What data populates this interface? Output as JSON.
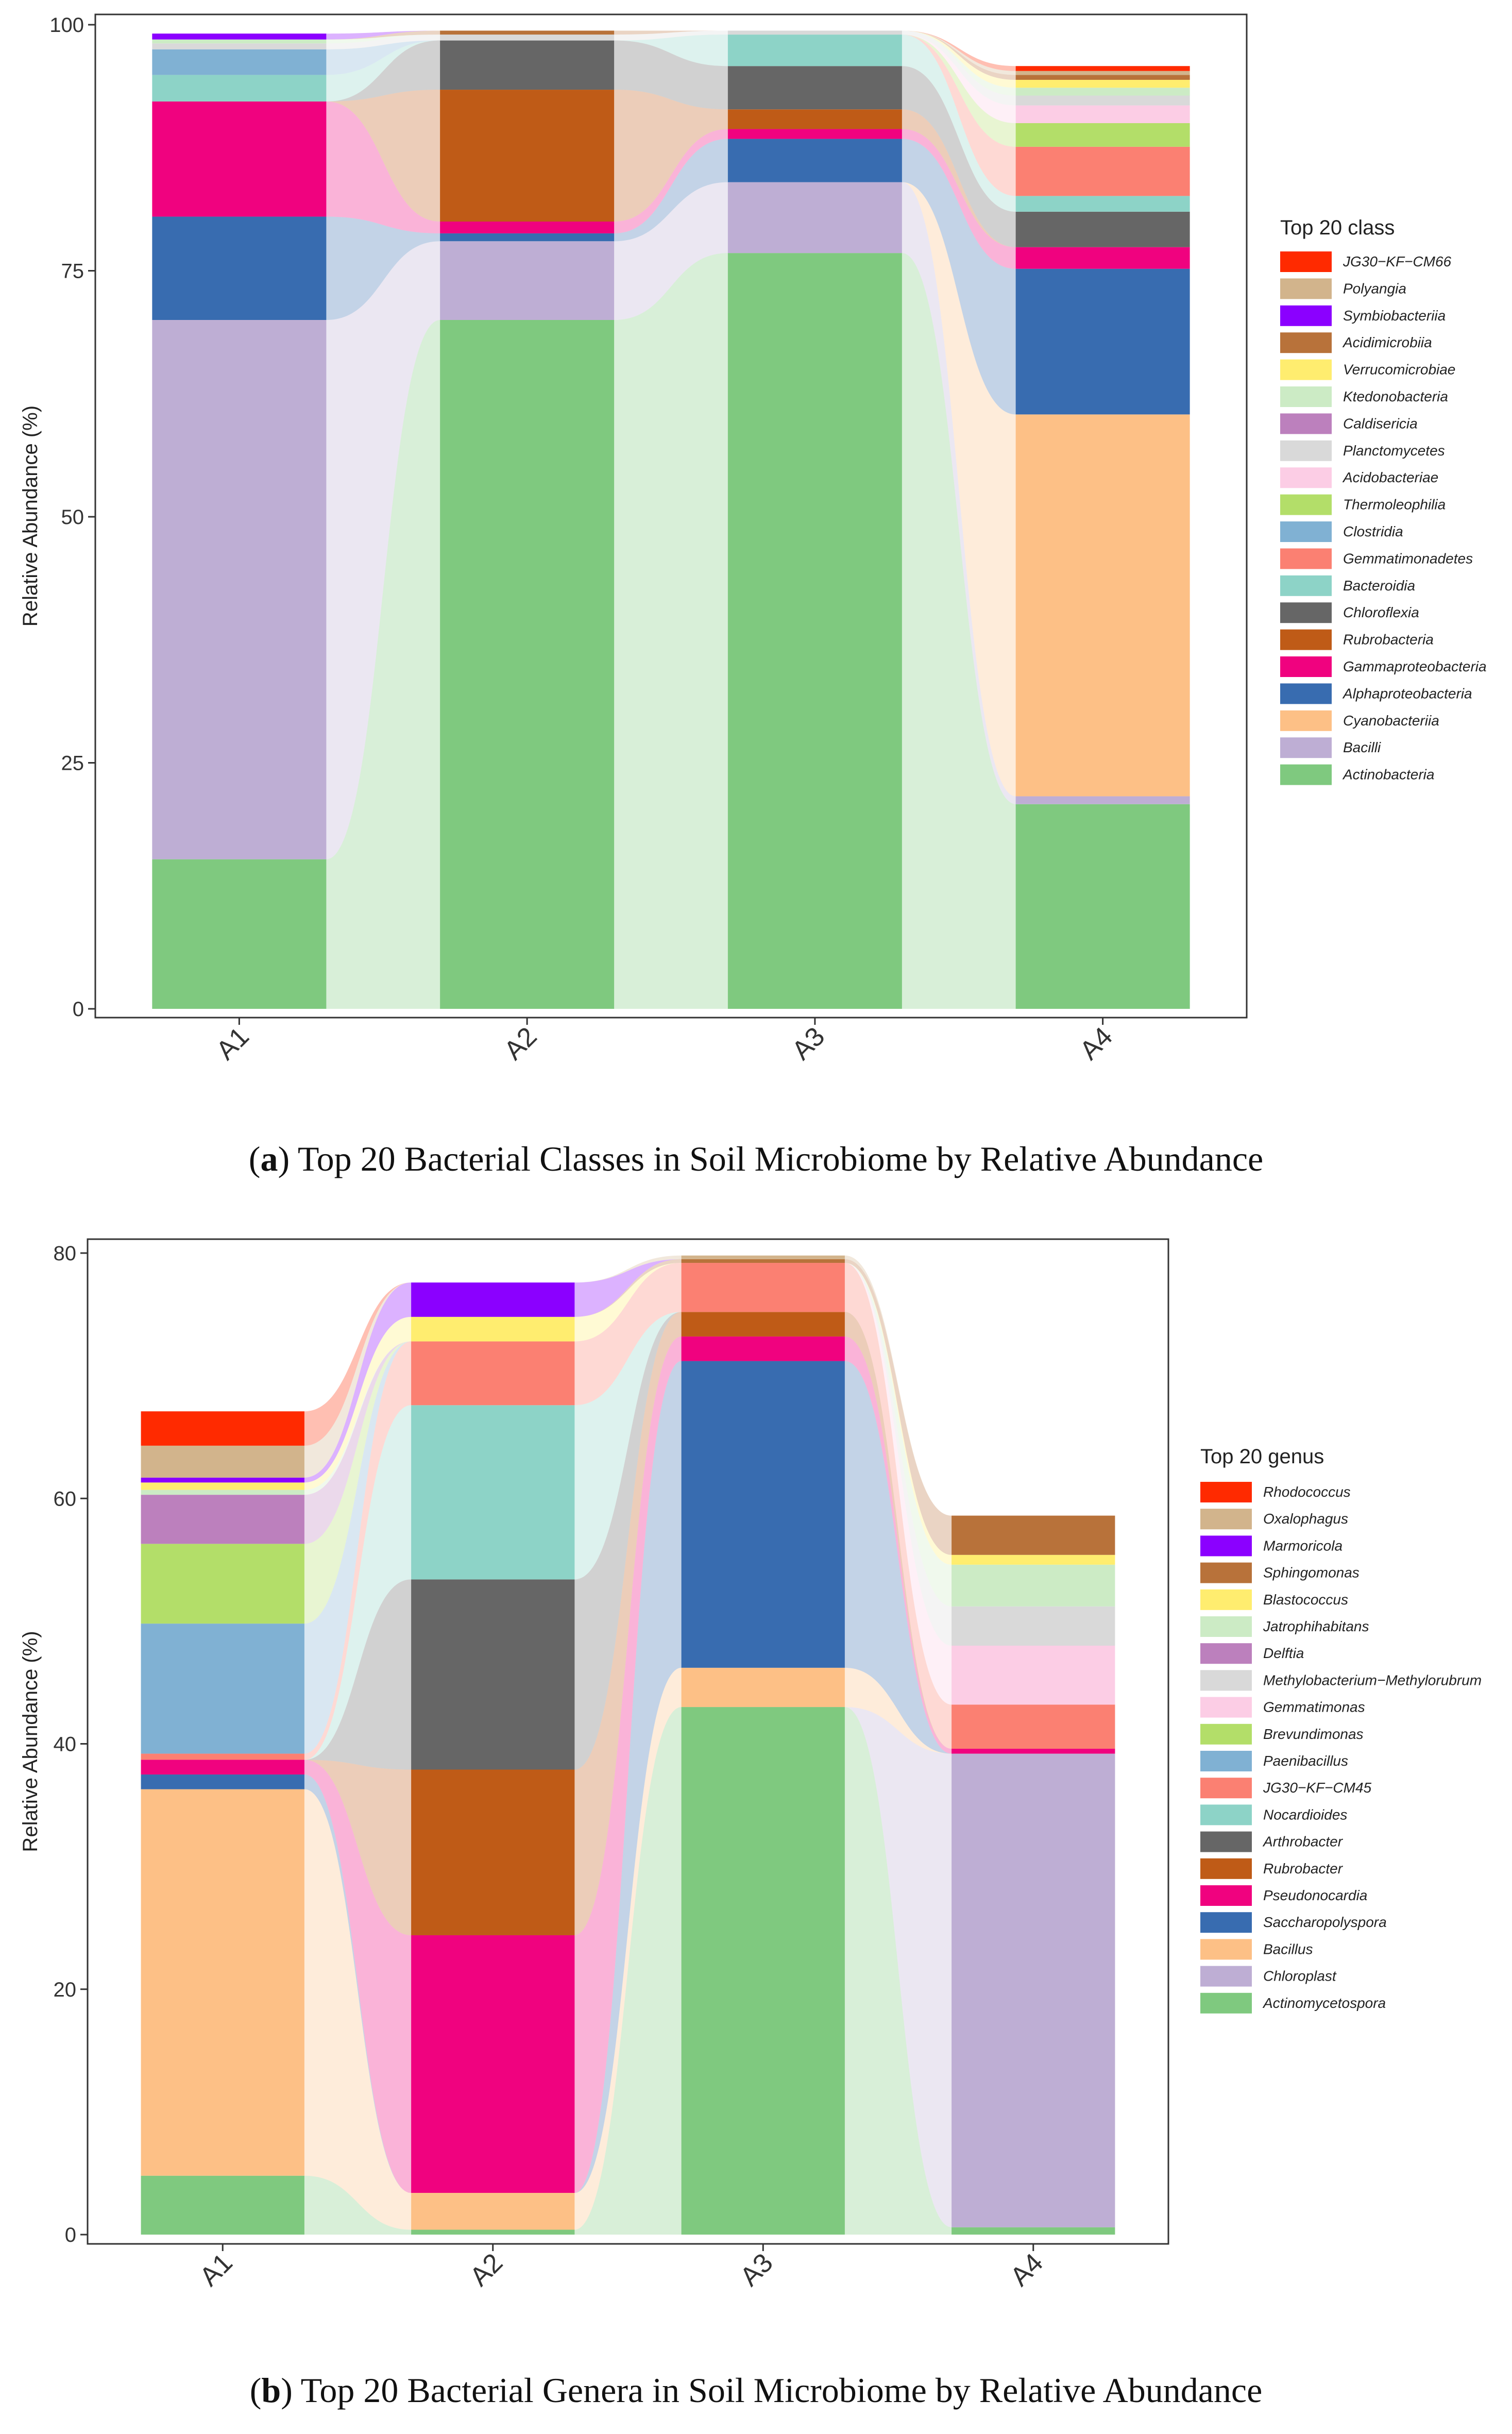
{
  "figure": {
    "caption_a": {
      "prefix": "(",
      "label": "a",
      "text": ") Top 20 Bacterial Classes in Soil Microbiome by Relative Abundance"
    },
    "caption_b": {
      "prefix": "(",
      "label": "b",
      "text": ") Top 20 Bacterial Genera in Soil Microbiome by Relative Abundance"
    }
  },
  "chart_data": [
    {
      "type": "bar",
      "subtype": "stacked-alluvial",
      "ylabel": "Relative Abundance (%)",
      "xlabel": "",
      "ylim": [
        0,
        100
      ],
      "yticks": [
        0,
        25,
        50,
        75,
        100
      ],
      "categories": [
        "A1",
        "A2",
        "A3",
        "A4"
      ],
      "legend_title": "Top 20 class",
      "legend_position": "right",
      "series": [
        {
          "name": "Actinobacteria",
          "color": "#7FC97F",
          "values": [
            15.2,
            70.0,
            76.8,
            20.8
          ]
        },
        {
          "name": "Bacilli",
          "color": "#BEAED4",
          "values": [
            54.8,
            8.0,
            7.2,
            0.8
          ]
        },
        {
          "name": "Cyanobacteriia",
          "color": "#FDC086",
          "values": [
            0.0,
            0.0,
            0.0,
            38.8
          ]
        },
        {
          "name": "Alphaproteobacteria",
          "color": "#386CB0",
          "values": [
            10.5,
            0.8,
            4.4,
            14.8
          ]
        },
        {
          "name": "Gammaproteobacteria",
          "color": "#F0027F",
          "values": [
            11.7,
            1.2,
            1.0,
            2.2
          ]
        },
        {
          "name": "Rubrobacteria",
          "color": "#BF5B17",
          "values": [
            0.0,
            13.4,
            2.0,
            0.0
          ]
        },
        {
          "name": "Chloroflexia",
          "color": "#666666",
          "values": [
            0.0,
            5.0,
            4.4,
            3.6
          ]
        },
        {
          "name": "Bacteroidia",
          "color": "#8DD3C7",
          "values": [
            2.7,
            0.0,
            3.2,
            1.6
          ]
        },
        {
          "name": "Gemmatimonadetes",
          "color": "#FB8072",
          "values": [
            0.0,
            0.0,
            0.0,
            5.0
          ]
        },
        {
          "name": "Clostridia",
          "color": "#80B1D3",
          "values": [
            2.6,
            0.0,
            0.0,
            0.0
          ]
        },
        {
          "name": "Thermoleophilia",
          "color": "#B3DE69",
          "values": [
            0.0,
            0.0,
            0.0,
            2.4
          ]
        },
        {
          "name": "Acidobacteriae",
          "color": "#FCCDE5",
          "values": [
            0.0,
            0.0,
            0.0,
            1.8
          ]
        },
        {
          "name": "Planctomycetes",
          "color": "#D9D9D9",
          "values": [
            0.6,
            0.6,
            0.4,
            1.0
          ]
        },
        {
          "name": "Caldisericia",
          "color": "#BC80BD",
          "values": [
            0.0,
            0.0,
            0.0,
            0.0
          ]
        },
        {
          "name": "Ktedonobacteria",
          "color": "#CCEBC5",
          "values": [
            0.4,
            0.0,
            0.0,
            0.8
          ]
        },
        {
          "name": "Verrucomicrobiae",
          "color": "#FFED6F",
          "values": [
            0.0,
            0.0,
            0.0,
            0.8
          ]
        },
        {
          "name": "Acidimicrobiia",
          "color": "#B8723A",
          "values": [
            0.0,
            0.4,
            0.0,
            0.5
          ]
        },
        {
          "name": "Symbiobacteriia",
          "color": "#8B00FF",
          "values": [
            0.6,
            0.0,
            0.0,
            0.0
          ]
        },
        {
          "name": "Polyangia",
          "color": "#D2B48C",
          "values": [
            0.0,
            0.0,
            0.0,
            0.4
          ]
        },
        {
          "name": "JG30−KF−CM66",
          "color": "#FF2A00",
          "values": [
            0.0,
            0.0,
            0.0,
            0.5
          ]
        }
      ]
    },
    {
      "type": "bar",
      "subtype": "stacked-alluvial",
      "ylabel": "Relative Abundance (%)",
      "xlabel": "",
      "ylim": [
        0,
        80
      ],
      "yticks": [
        0,
        20,
        40,
        60,
        80
      ],
      "categories": [
        "A1",
        "A2",
        "A3",
        "A4"
      ],
      "legend_title": "Top 20 genus",
      "legend_position": "right",
      "series": [
        {
          "name": "Actinomycetospora",
          "color": "#7FC97F",
          "values": [
            4.8,
            0.4,
            43.0,
            0.6
          ]
        },
        {
          "name": "Chloroplast",
          "color": "#BEAED4",
          "values": [
            0.0,
            0.0,
            0.0,
            38.6
          ]
        },
        {
          "name": "Bacillus",
          "color": "#FDC086",
          "values": [
            31.5,
            3.0,
            3.2,
            0.0
          ]
        },
        {
          "name": "Saccharopolyspora",
          "color": "#386CB0",
          "values": [
            1.2,
            0.0,
            25.0,
            0.0
          ]
        },
        {
          "name": "Pseudonocardia",
          "color": "#F0027F",
          "values": [
            1.2,
            21.0,
            2.0,
            0.4
          ]
        },
        {
          "name": "Rubrobacter",
          "color": "#BF5B17",
          "values": [
            0.0,
            13.5,
            2.0,
            0.0
          ]
        },
        {
          "name": "Arthrobacter",
          "color": "#666666",
          "values": [
            0.0,
            15.5,
            0.0,
            0.0
          ]
        },
        {
          "name": "Nocardioides",
          "color": "#8DD3C7",
          "values": [
            0.0,
            14.2,
            0.0,
            0.0
          ]
        },
        {
          "name": "JG30−KF−CM45",
          "color": "#FB8072",
          "values": [
            0.5,
            5.2,
            4.0,
            3.6
          ]
        },
        {
          "name": "Paenibacillus",
          "color": "#80B1D3",
          "values": [
            10.6,
            0.0,
            0.0,
            0.0
          ]
        },
        {
          "name": "Brevundimonas",
          "color": "#B3DE69",
          "values": [
            6.5,
            0.0,
            0.0,
            0.0
          ]
        },
        {
          "name": "Gemmatimonas",
          "color": "#FCCDE5",
          "values": [
            0.0,
            0.0,
            0.0,
            4.8
          ]
        },
        {
          "name": "Methylobacterium−Methylorubrum",
          "color": "#D9D9D9",
          "values": [
            0.0,
            0.0,
            0.0,
            3.2
          ]
        },
        {
          "name": "Delftia",
          "color": "#BC80BD",
          "values": [
            4.0,
            0.0,
            0.0,
            0.0
          ]
        },
        {
          "name": "Jatrophihabitans",
          "color": "#CCEBC5",
          "values": [
            0.4,
            0.0,
            0.0,
            3.4
          ]
        },
        {
          "name": "Blastococcus",
          "color": "#FFED6F",
          "values": [
            0.6,
            2.0,
            0.0,
            0.8
          ]
        },
        {
          "name": "Sphingomonas",
          "color": "#B8723A",
          "values": [
            0.0,
            0.0,
            0.3,
            3.2
          ]
        },
        {
          "name": "Marmoricola",
          "color": "#8B00FF",
          "values": [
            0.4,
            2.8,
            0.0,
            0.0
          ]
        },
        {
          "name": "Oxalophagus",
          "color": "#D2B48C",
          "values": [
            2.6,
            0.0,
            0.3,
            0.0
          ]
        },
        {
          "name": "Rhodococcus",
          "color": "#FF2A00",
          "values": [
            2.8,
            0.0,
            0.0,
            0.0
          ]
        }
      ]
    }
  ]
}
